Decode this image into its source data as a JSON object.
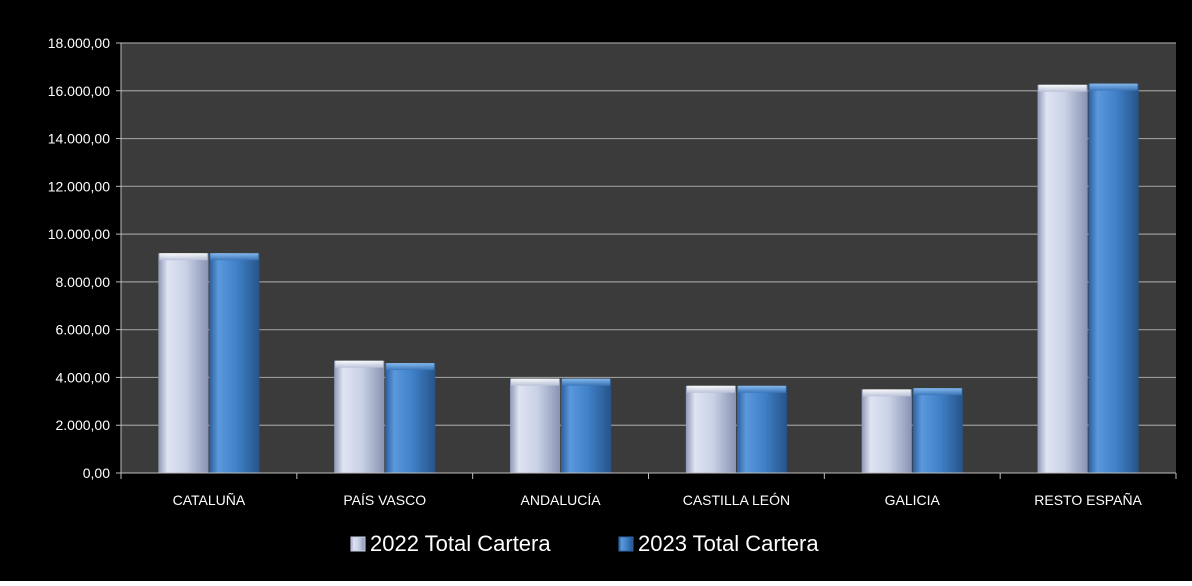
{
  "chart_data": {
    "type": "bar",
    "title": "",
    "xlabel": "",
    "ylabel": "",
    "categories": [
      "CATALUÑA",
      "PAÍS VASCO",
      "ANDALUCÍA",
      "CASTILLA LEÓN",
      "GALICIA",
      "RESTO ESPAÑA"
    ],
    "series": [
      {
        "name": "2022 Total Cartera",
        "values": [
          9200,
          4700,
          3950,
          3650,
          3500,
          16250
        ],
        "color": "#d4dcee"
      },
      {
        "name": "2023 Total Cartera",
        "values": [
          9200,
          4600,
          3950,
          3650,
          3550,
          16300
        ],
        "color": "#3f80c8"
      }
    ],
    "ylim": [
      0,
      18000
    ],
    "yticks": [
      0,
      2000,
      4000,
      6000,
      8000,
      10000,
      12000,
      14000,
      16000,
      18000
    ],
    "ytick_labels": [
      "0,00",
      "2.000,00",
      "4.000,00",
      "6.000,00",
      "8.000,00",
      "10.000,00",
      "12.000,00",
      "14.000,00",
      "16.000,00",
      "18.000,00"
    ],
    "grid": true,
    "legend_position": "bottom",
    "colors": {
      "chart_background": "#000000",
      "plot_background": "#3b3b3b",
      "gridline": "#9a9a9a",
      "text": "#ffffff"
    }
  }
}
